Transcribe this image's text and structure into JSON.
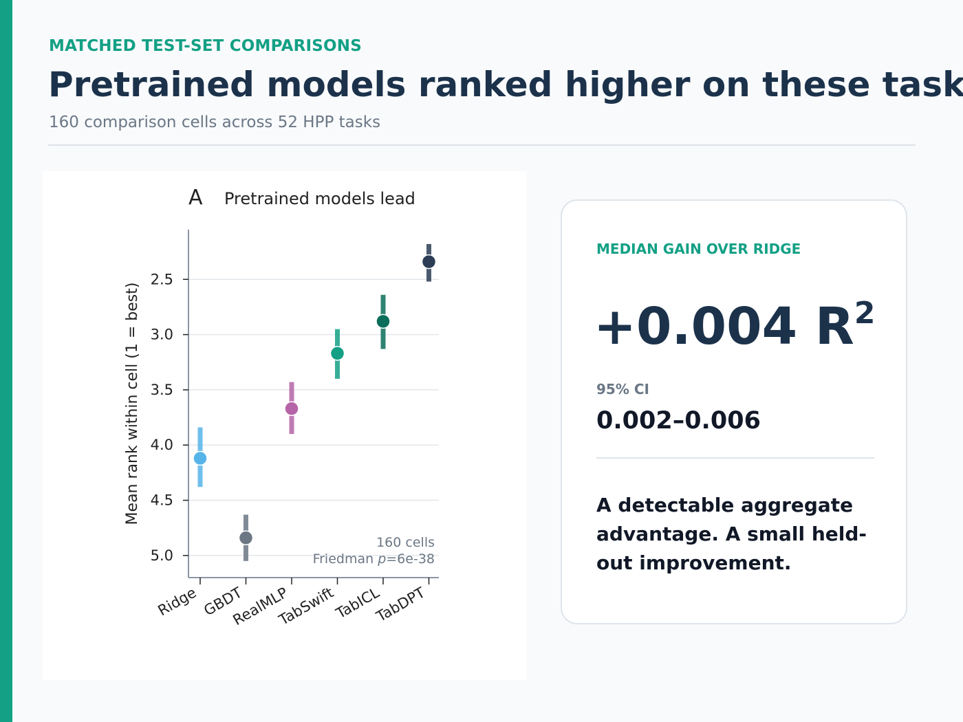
{
  "header": {
    "eyebrow": "MATCHED TEST-SET COMPARISONS",
    "title": "Pretrained models ranked higher on these tasks",
    "subtitle": "160 comparison cells across 52 HPP tasks"
  },
  "chart_data": {
    "type": "scatter",
    "panel_letter": "A",
    "title": "Pretrained models lead",
    "xlabel": "",
    "ylabel": "Mean rank within cell (1 = best)",
    "categories": [
      "Ridge",
      "GBDT",
      "RealMLP",
      "TabSwift",
      "TabICL",
      "TabDPT"
    ],
    "points": [
      {
        "model": "Ridge",
        "mean": 4.12,
        "lo": 3.84,
        "hi": 4.38,
        "color": "#56b4e9"
      },
      {
        "model": "GBDT",
        "mean": 4.84,
        "lo": 4.63,
        "hi": 5.05,
        "color": "#6b7785"
      },
      {
        "model": "RealMLP",
        "mean": 3.67,
        "lo": 3.43,
        "hi": 3.9,
        "color": "#b565a7"
      },
      {
        "model": "TabSwift",
        "mean": 3.17,
        "lo": 2.95,
        "hi": 3.4,
        "color": "#13a085"
      },
      {
        "model": "TabICL",
        "mean": 2.88,
        "lo": 2.64,
        "hi": 3.13,
        "color": "#0b6e5a"
      },
      {
        "model": "TabDPT",
        "mean": 2.34,
        "lo": 2.18,
        "hi": 2.52,
        "color": "#2c3e55"
      }
    ],
    "y_ticks": [
      "2.5",
      "3.0",
      "3.5",
      "4.0",
      "4.5",
      "5.0"
    ],
    "y_tick_values": [
      2.5,
      3.0,
      3.5,
      4.0,
      4.5,
      5.0
    ],
    "ylim": [
      5.2,
      2.05
    ],
    "y_inverted": true,
    "grid": "horizontal",
    "annotation_cells": "160 cells",
    "annotation_test_prefix": "Friedman ",
    "annotation_test_p": "p",
    "annotation_test_value": "=6e-38"
  },
  "stat_card": {
    "label": "MEDIAN GAIN OVER RIDGE",
    "value": "+0.004 R",
    "value_sup": "2",
    "ci_label": "95% CI",
    "ci_value": "0.002–0.006",
    "note": "A detectable aggregate advantage. A small held-out improvement."
  }
}
